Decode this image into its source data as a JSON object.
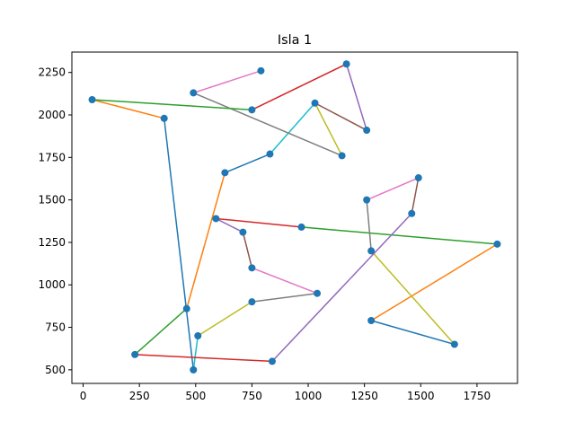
{
  "chart_data": {
    "type": "line",
    "title": "Isla 1",
    "xlabel": "",
    "ylabel": "",
    "xlim": [
      -50,
      1930
    ],
    "ylim": [
      420,
      2370
    ],
    "x_ticks": [
      0,
      250,
      500,
      750,
      1000,
      1250,
      1500,
      1750
    ],
    "y_ticks": [
      500,
      750,
      1000,
      1250,
      1500,
      1750,
      2000,
      2250
    ],
    "grid": false,
    "legend": "none",
    "point_color": "#1f77b4",
    "points": [
      {
        "x": 40,
        "y": 2090
      },
      {
        "x": 360,
        "y": 1980
      },
      {
        "x": 490,
        "y": 500
      },
      {
        "x": 510,
        "y": 700
      },
      {
        "x": 750,
        "y": 900
      },
      {
        "x": 1040,
        "y": 950
      },
      {
        "x": 750,
        "y": 1100
      },
      {
        "x": 710,
        "y": 1310
      },
      {
        "x": 590,
        "y": 1390
      },
      {
        "x": 970,
        "y": 1340
      },
      {
        "x": 1840,
        "y": 1240
      },
      {
        "x": 1280,
        "y": 790
      },
      {
        "x": 1650,
        "y": 650
      },
      {
        "x": 1280,
        "y": 1200
      },
      {
        "x": 1260,
        "y": 1500
      },
      {
        "x": 1490,
        "y": 1630
      },
      {
        "x": 1460,
        "y": 1420
      },
      {
        "x": 840,
        "y": 550
      },
      {
        "x": 230,
        "y": 590
      },
      {
        "x": 460,
        "y": 860
      },
      {
        "x": 630,
        "y": 1660
      },
      {
        "x": 830,
        "y": 1770
      },
      {
        "x": 1030,
        "y": 2070
      },
      {
        "x": 1150,
        "y": 1760
      },
      {
        "x": 490,
        "y": 2130
      },
      {
        "x": 790,
        "y": 2260
      },
      {
        "x": 1170,
        "y": 2300
      },
      {
        "x": 1260,
        "y": 1910
      },
      {
        "x": 750,
        "y": 2030
      }
    ],
    "segments": [
      {
        "from": [
          40,
          2090
        ],
        "to": [
          360,
          1980
        ],
        "color": "#ff7f0e"
      },
      {
        "from": [
          360,
          1980
        ],
        "to": [
          490,
          500
        ],
        "color": "#1f77b4"
      },
      {
        "from": [
          490,
          500
        ],
        "to": [
          510,
          700
        ],
        "color": "#17becf"
      },
      {
        "from": [
          510,
          700
        ],
        "to": [
          750,
          900
        ],
        "color": "#bcbd22"
      },
      {
        "from": [
          750,
          900
        ],
        "to": [
          1040,
          950
        ],
        "color": "#7f7f7f"
      },
      {
        "from": [
          1040,
          950
        ],
        "to": [
          750,
          1100
        ],
        "color": "#e377c2"
      },
      {
        "from": [
          750,
          1100
        ],
        "to": [
          710,
          1310
        ],
        "color": "#8c564b"
      },
      {
        "from": [
          710,
          1310
        ],
        "to": [
          590,
          1390
        ],
        "color": "#9467bd"
      },
      {
        "from": [
          590,
          1390
        ],
        "to": [
          970,
          1340
        ],
        "color": "#d62728"
      },
      {
        "from": [
          970,
          1340
        ],
        "to": [
          1840,
          1240
        ],
        "color": "#2ca02c"
      },
      {
        "from": [
          1840,
          1240
        ],
        "to": [
          1280,
          790
        ],
        "color": "#ff7f0e"
      },
      {
        "from": [
          1280,
          790
        ],
        "to": [
          1650,
          650
        ],
        "color": "#1f77b4"
      },
      {
        "from": [
          1650,
          650
        ],
        "to": [
          1280,
          1200
        ],
        "color": "#bcbd22"
      },
      {
        "from": [
          1280,
          1200
        ],
        "to": [
          1260,
          1500
        ],
        "color": "#7f7f7f"
      },
      {
        "from": [
          1260,
          1500
        ],
        "to": [
          1490,
          1630
        ],
        "color": "#e377c2"
      },
      {
        "from": [
          1490,
          1630
        ],
        "to": [
          1460,
          1420
        ],
        "color": "#8c564b"
      },
      {
        "from": [
          1460,
          1420
        ],
        "to": [
          840,
          550
        ],
        "color": "#9467bd"
      },
      {
        "from": [
          840,
          550
        ],
        "to": [
          230,
          590
        ],
        "color": "#d62728"
      },
      {
        "from": [
          230,
          590
        ],
        "to": [
          460,
          860
        ],
        "color": "#2ca02c"
      },
      {
        "from": [
          460,
          860
        ],
        "to": [
          630,
          1660
        ],
        "color": "#ff7f0e"
      },
      {
        "from": [
          630,
          1660
        ],
        "to": [
          830,
          1770
        ],
        "color": "#1f77b4"
      },
      {
        "from": [
          830,
          1770
        ],
        "to": [
          1030,
          2070
        ],
        "color": "#17becf"
      },
      {
        "from": [
          1030,
          2070
        ],
        "to": [
          1150,
          1760
        ],
        "color": "#bcbd22"
      },
      {
        "from": [
          1150,
          1760
        ],
        "to": [
          490,
          2130
        ],
        "color": "#7f7f7f"
      },
      {
        "from": [
          490,
          2130
        ],
        "to": [
          790,
          2260
        ],
        "color": "#e377c2"
      },
      {
        "from": [
          1030,
          2070
        ],
        "to": [
          1260,
          1910
        ],
        "color": "#8c564b"
      },
      {
        "from": [
          1260,
          1910
        ],
        "to": [
          1170,
          2300
        ],
        "color": "#9467bd"
      },
      {
        "from": [
          1170,
          2300
        ],
        "to": [
          750,
          2030
        ],
        "color": "#d62728"
      },
      {
        "from": [
          750,
          2030
        ],
        "to": [
          40,
          2090
        ],
        "color": "#2ca02c"
      }
    ]
  }
}
